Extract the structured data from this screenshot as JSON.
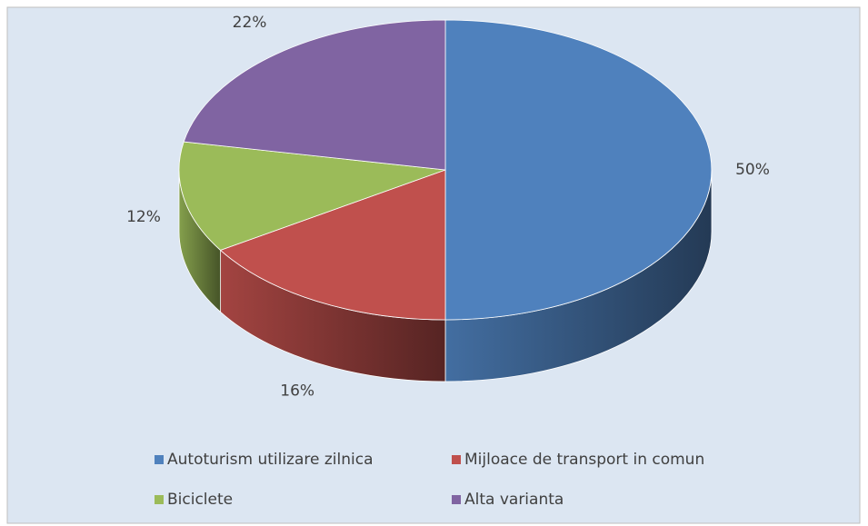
{
  "chart_data": {
    "type": "pie",
    "categories": [
      "Autoturism utilizare zilnica",
      "Mijloace de transport in comun",
      "Biciclete",
      "Alta varianta"
    ],
    "values": [
      50,
      16,
      12,
      22
    ],
    "value_labels": [
      "50%",
      "16%",
      "12%",
      "22%"
    ],
    "colors": [
      "#4f81bd",
      "#c0504d",
      "#9bbb59",
      "#8064a2"
    ],
    "legend": "bottom"
  }
}
